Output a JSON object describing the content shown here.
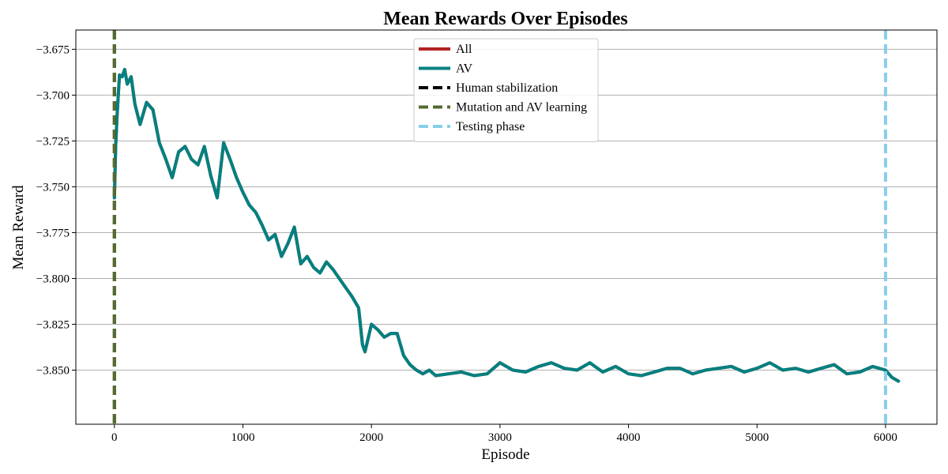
{
  "chart_data": {
    "type": "line",
    "title": "Mean Rewards Over Episodes",
    "xlabel": "Episode",
    "ylabel": "Mean Reward",
    "xlim": [
      -300,
      6400
    ],
    "ylim": [
      -3.8795,
      -3.6645
    ],
    "xticks": [
      0,
      1000,
      2000,
      3000,
      4000,
      5000,
      6000
    ],
    "yticks": [
      -3.675,
      -3.7,
      -3.725,
      -3.75,
      -3.775,
      -3.8,
      -3.825,
      -3.85
    ],
    "xtick_labels": [
      "0",
      "1000",
      "2000",
      "3000",
      "4000",
      "5000",
      "6000"
    ],
    "ytick_labels": [
      "−3.675",
      "−3.700",
      "−3.725",
      "−3.750",
      "−3.775",
      "−3.800",
      "−3.825",
      "−3.850"
    ],
    "grid": "horizontal",
    "legend_position": "top-center",
    "series": [
      {
        "name": "All",
        "color": "#b22222",
        "x": [
          0,
          10,
          20,
          30,
          40,
          60,
          80,
          100,
          130,
          160,
          200,
          250,
          300,
          350,
          400,
          450,
          500,
          550,
          600,
          650,
          700,
          750,
          800,
          850,
          900,
          950,
          1000,
          1050,
          1100,
          1150,
          1200,
          1250,
          1300,
          1350,
          1400,
          1450,
          1500,
          1550,
          1600,
          1650,
          1700,
          1750,
          1800,
          1850,
          1900,
          1930,
          1950,
          2000,
          2050,
          2100,
          2150,
          2200,
          2250,
          2300,
          2350,
          2400,
          2450,
          2500,
          2600,
          2700,
          2800,
          2900,
          3000,
          3100,
          3200,
          3300,
          3400,
          3500,
          3600,
          3700,
          3800,
          3900,
          4000,
          4100,
          4200,
          4300,
          4400,
          4500,
          4600,
          4700,
          4800,
          4900,
          5000,
          5100,
          5200,
          5300,
          5400,
          5500,
          5600,
          5700,
          5800,
          5900,
          6000,
          6050,
          6100
        ],
        "y": [
          -3.756,
          -3.728,
          -3.712,
          -3.7,
          -3.689,
          -3.69,
          -3.686,
          -3.694,
          -3.69,
          -3.705,
          -3.716,
          -3.704,
          -3.708,
          -3.726,
          -3.735,
          -3.745,
          -3.731,
          -3.728,
          -3.735,
          -3.738,
          -3.728,
          -3.744,
          -3.756,
          -3.726,
          -3.735,
          -3.745,
          -3.753,
          -3.76,
          -3.764,
          -3.771,
          -3.779,
          -3.776,
          -3.788,
          -3.781,
          -3.772,
          -3.792,
          -3.788,
          -3.794,
          -3.797,
          -3.791,
          -3.795,
          -3.8,
          -3.805,
          -3.81,
          -3.816,
          -3.836,
          -3.84,
          -3.825,
          -3.828,
          -3.832,
          -3.83,
          -3.83,
          -3.842,
          -3.847,
          -3.85,
          -3.852,
          -3.85,
          -3.853,
          -3.852,
          -3.851,
          -3.853,
          -3.852,
          -3.846,
          -3.85,
          -3.851,
          -3.848,
          -3.846,
          -3.849,
          -3.85,
          -3.846,
          -3.851,
          -3.848,
          -3.852,
          -3.853,
          -3.851,
          -3.849,
          -3.849,
          -3.852,
          -3.85,
          -3.849,
          -3.848,
          -3.851,
          -3.849,
          -3.846,
          -3.85,
          -3.849,
          -3.851,
          -3.849,
          -3.847,
          -3.852,
          -3.851,
          -3.848,
          -3.85,
          -3.854,
          -3.856
        ]
      },
      {
        "name": "AV",
        "color": "#008080",
        "x": [
          0,
          10,
          20,
          30,
          40,
          60,
          80,
          100,
          130,
          160,
          200,
          250,
          300,
          350,
          400,
          450,
          500,
          550,
          600,
          650,
          700,
          750,
          800,
          850,
          900,
          950,
          1000,
          1050,
          1100,
          1150,
          1200,
          1250,
          1300,
          1350,
          1400,
          1450,
          1500,
          1550,
          1600,
          1650,
          1700,
          1750,
          1800,
          1850,
          1900,
          1930,
          1950,
          2000,
          2050,
          2100,
          2150,
          2200,
          2250,
          2300,
          2350,
          2400,
          2450,
          2500,
          2600,
          2700,
          2800,
          2900,
          3000,
          3100,
          3200,
          3300,
          3400,
          3500,
          3600,
          3700,
          3800,
          3900,
          4000,
          4100,
          4200,
          4300,
          4400,
          4500,
          4600,
          4700,
          4800,
          4900,
          5000,
          5100,
          5200,
          5300,
          5400,
          5500,
          5600,
          5700,
          5800,
          5900,
          6000,
          6050,
          6100
        ],
        "y": [
          -3.756,
          -3.728,
          -3.712,
          -3.7,
          -3.689,
          -3.69,
          -3.686,
          -3.694,
          -3.69,
          -3.705,
          -3.716,
          -3.704,
          -3.708,
          -3.726,
          -3.735,
          -3.745,
          -3.731,
          -3.728,
          -3.735,
          -3.738,
          -3.728,
          -3.744,
          -3.756,
          -3.726,
          -3.735,
          -3.745,
          -3.753,
          -3.76,
          -3.764,
          -3.771,
          -3.779,
          -3.776,
          -3.788,
          -3.781,
          -3.772,
          -3.792,
          -3.788,
          -3.794,
          -3.797,
          -3.791,
          -3.795,
          -3.8,
          -3.805,
          -3.81,
          -3.816,
          -3.836,
          -3.84,
          -3.825,
          -3.828,
          -3.832,
          -3.83,
          -3.83,
          -3.842,
          -3.847,
          -3.85,
          -3.852,
          -3.85,
          -3.853,
          -3.852,
          -3.851,
          -3.853,
          -3.852,
          -3.846,
          -3.85,
          -3.851,
          -3.848,
          -3.846,
          -3.849,
          -3.85,
          -3.846,
          -3.851,
          -3.848,
          -3.852,
          -3.853,
          -3.851,
          -3.849,
          -3.849,
          -3.852,
          -3.85,
          -3.849,
          -3.848,
          -3.851,
          -3.849,
          -3.846,
          -3.85,
          -3.849,
          -3.851,
          -3.849,
          -3.847,
          -3.852,
          -3.851,
          -3.848,
          -3.85,
          -3.854,
          -3.856
        ]
      }
    ],
    "vlines": [
      {
        "name": "Human stabilization",
        "x": 0,
        "color": "#000000"
      },
      {
        "name": "Mutation and AV learning",
        "x": 0,
        "color": "#556b2f"
      },
      {
        "name": "Testing phase",
        "x": 6000,
        "color": "#87ceeb"
      }
    ],
    "legend": [
      {
        "label": "All",
        "color": "#b22222",
        "style": "solid"
      },
      {
        "label": "AV",
        "color": "#008080",
        "style": "solid"
      },
      {
        "label": "Human stabilization",
        "color": "#000000",
        "style": "dashed"
      },
      {
        "label": "Mutation and AV learning",
        "color": "#556b2f",
        "style": "dashed"
      },
      {
        "label": "Testing phase",
        "color": "#87ceeb",
        "style": "dashed"
      }
    ]
  }
}
